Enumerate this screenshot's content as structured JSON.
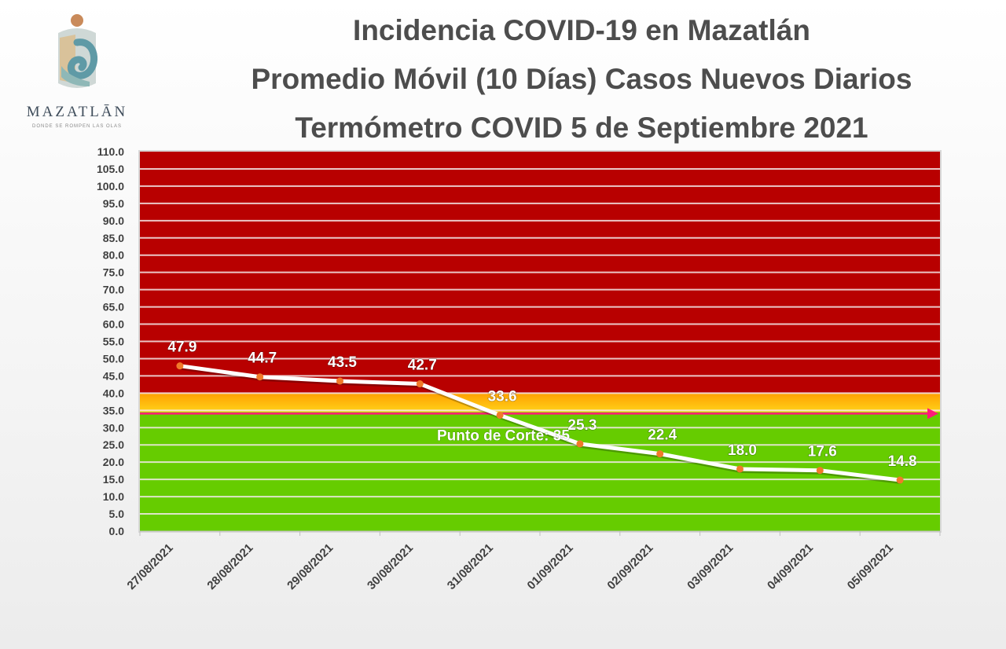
{
  "header": {
    "logo_word": "MAZATLĀN",
    "logo_tagline": "DONDE SE ROMPEN LAS OLAS",
    "title_lines": [
      "Incidencia COVID-19 en Mazatlán",
      "Promedio Móvil (10 Días) Casos Nuevos Diarios",
      "Termómetro COVID 5 de Septiembre 2021"
    ]
  },
  "colors": {
    "red_zone": "#b80000",
    "yellow_zone_top": "#ffa000",
    "yellow_zone_bottom": "#ffd21a",
    "green_zone": "#66cc00",
    "line": "#ffffff",
    "marker": "#f07a2a",
    "cut_line": "#ff1a7a"
  },
  "chart_data": {
    "type": "line",
    "categories": [
      "27/08/2021",
      "28/08/2021",
      "29/08/2021",
      "30/08/2021",
      "31/08/2021",
      "01/09/2021",
      "02/09/2021",
      "03/09/2021",
      "04/09/2021",
      "05/09/2021"
    ],
    "series": [
      {
        "values": [
          47.9,
          44.7,
          43.5,
          42.7,
          33.6,
          25.3,
          22.4,
          18.0,
          17.6,
          14.8
        ]
      }
    ],
    "data_labels": [
      "47.9",
      "44.7",
      "43.5",
      "42.7",
      "33.6",
      "25.3",
      "22.4",
      "18.0",
      "17.6",
      "14.8"
    ],
    "ylim": [
      0,
      110
    ],
    "y_ticks": [
      "0.0",
      "5.0",
      "10.0",
      "15.0",
      "20.0",
      "25.0",
      "30.0",
      "35.0",
      "40.0",
      "45.0",
      "50.0",
      "55.0",
      "60.0",
      "65.0",
      "70.0",
      "75.0",
      "80.0",
      "85.0",
      "90.0",
      "95.0",
      "100.0",
      "105.0",
      "110.0"
    ],
    "zones": [
      {
        "name": "green",
        "from": 0,
        "to": 34.5
      },
      {
        "name": "yellow",
        "from": 34.5,
        "to": 40
      },
      {
        "name": "red",
        "from": 40,
        "to": 110
      }
    ],
    "cut_point": {
      "value": 35,
      "label": "Punto de Corte: 35"
    },
    "grid": true,
    "legend": "none"
  }
}
